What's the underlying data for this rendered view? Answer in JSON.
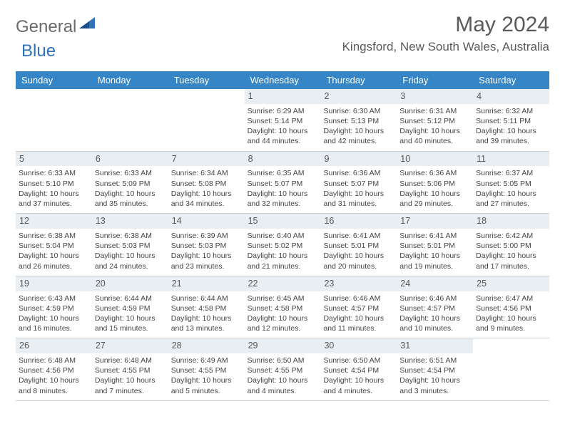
{
  "brand": {
    "name1": "General",
    "name2": "Blue"
  },
  "title": "May 2024",
  "location": "Kingsford, New South Wales, Australia",
  "colors": {
    "header_bg": "#3685c6",
    "header_text": "#ffffff",
    "daynum_bg": "#e9eef3",
    "brand_gray": "#6a6a6a",
    "brand_blue": "#2f72b8",
    "text": "#444444",
    "border": "#d0d0d0"
  },
  "dayNames": [
    "Sunday",
    "Monday",
    "Tuesday",
    "Wednesday",
    "Thursday",
    "Friday",
    "Saturday"
  ],
  "weeks": [
    [
      {
        "n": "",
        "sr": "",
        "ss": "",
        "dl": ""
      },
      {
        "n": "",
        "sr": "",
        "ss": "",
        "dl": ""
      },
      {
        "n": "",
        "sr": "",
        "ss": "",
        "dl": ""
      },
      {
        "n": "1",
        "sr": "Sunrise: 6:29 AM",
        "ss": "Sunset: 5:14 PM",
        "dl": "Daylight: 10 hours and 44 minutes."
      },
      {
        "n": "2",
        "sr": "Sunrise: 6:30 AM",
        "ss": "Sunset: 5:13 PM",
        "dl": "Daylight: 10 hours and 42 minutes."
      },
      {
        "n": "3",
        "sr": "Sunrise: 6:31 AM",
        "ss": "Sunset: 5:12 PM",
        "dl": "Daylight: 10 hours and 40 minutes."
      },
      {
        "n": "4",
        "sr": "Sunrise: 6:32 AM",
        "ss": "Sunset: 5:11 PM",
        "dl": "Daylight: 10 hours and 39 minutes."
      }
    ],
    [
      {
        "n": "5",
        "sr": "Sunrise: 6:33 AM",
        "ss": "Sunset: 5:10 PM",
        "dl": "Daylight: 10 hours and 37 minutes."
      },
      {
        "n": "6",
        "sr": "Sunrise: 6:33 AM",
        "ss": "Sunset: 5:09 PM",
        "dl": "Daylight: 10 hours and 35 minutes."
      },
      {
        "n": "7",
        "sr": "Sunrise: 6:34 AM",
        "ss": "Sunset: 5:08 PM",
        "dl": "Daylight: 10 hours and 34 minutes."
      },
      {
        "n": "8",
        "sr": "Sunrise: 6:35 AM",
        "ss": "Sunset: 5:07 PM",
        "dl": "Daylight: 10 hours and 32 minutes."
      },
      {
        "n": "9",
        "sr": "Sunrise: 6:36 AM",
        "ss": "Sunset: 5:07 PM",
        "dl": "Daylight: 10 hours and 31 minutes."
      },
      {
        "n": "10",
        "sr": "Sunrise: 6:36 AM",
        "ss": "Sunset: 5:06 PM",
        "dl": "Daylight: 10 hours and 29 minutes."
      },
      {
        "n": "11",
        "sr": "Sunrise: 6:37 AM",
        "ss": "Sunset: 5:05 PM",
        "dl": "Daylight: 10 hours and 27 minutes."
      }
    ],
    [
      {
        "n": "12",
        "sr": "Sunrise: 6:38 AM",
        "ss": "Sunset: 5:04 PM",
        "dl": "Daylight: 10 hours and 26 minutes."
      },
      {
        "n": "13",
        "sr": "Sunrise: 6:38 AM",
        "ss": "Sunset: 5:03 PM",
        "dl": "Daylight: 10 hours and 24 minutes."
      },
      {
        "n": "14",
        "sr": "Sunrise: 6:39 AM",
        "ss": "Sunset: 5:03 PM",
        "dl": "Daylight: 10 hours and 23 minutes."
      },
      {
        "n": "15",
        "sr": "Sunrise: 6:40 AM",
        "ss": "Sunset: 5:02 PM",
        "dl": "Daylight: 10 hours and 21 minutes."
      },
      {
        "n": "16",
        "sr": "Sunrise: 6:41 AM",
        "ss": "Sunset: 5:01 PM",
        "dl": "Daylight: 10 hours and 20 minutes."
      },
      {
        "n": "17",
        "sr": "Sunrise: 6:41 AM",
        "ss": "Sunset: 5:01 PM",
        "dl": "Daylight: 10 hours and 19 minutes."
      },
      {
        "n": "18",
        "sr": "Sunrise: 6:42 AM",
        "ss": "Sunset: 5:00 PM",
        "dl": "Daylight: 10 hours and 17 minutes."
      }
    ],
    [
      {
        "n": "19",
        "sr": "Sunrise: 6:43 AM",
        "ss": "Sunset: 4:59 PM",
        "dl": "Daylight: 10 hours and 16 minutes."
      },
      {
        "n": "20",
        "sr": "Sunrise: 6:44 AM",
        "ss": "Sunset: 4:59 PM",
        "dl": "Daylight: 10 hours and 15 minutes."
      },
      {
        "n": "21",
        "sr": "Sunrise: 6:44 AM",
        "ss": "Sunset: 4:58 PM",
        "dl": "Daylight: 10 hours and 13 minutes."
      },
      {
        "n": "22",
        "sr": "Sunrise: 6:45 AM",
        "ss": "Sunset: 4:58 PM",
        "dl": "Daylight: 10 hours and 12 minutes."
      },
      {
        "n": "23",
        "sr": "Sunrise: 6:46 AM",
        "ss": "Sunset: 4:57 PM",
        "dl": "Daylight: 10 hours and 11 minutes."
      },
      {
        "n": "24",
        "sr": "Sunrise: 6:46 AM",
        "ss": "Sunset: 4:57 PM",
        "dl": "Daylight: 10 hours and 10 minutes."
      },
      {
        "n": "25",
        "sr": "Sunrise: 6:47 AM",
        "ss": "Sunset: 4:56 PM",
        "dl": "Daylight: 10 hours and 9 minutes."
      }
    ],
    [
      {
        "n": "26",
        "sr": "Sunrise: 6:48 AM",
        "ss": "Sunset: 4:56 PM",
        "dl": "Daylight: 10 hours and 8 minutes."
      },
      {
        "n": "27",
        "sr": "Sunrise: 6:48 AM",
        "ss": "Sunset: 4:55 PM",
        "dl": "Daylight: 10 hours and 7 minutes."
      },
      {
        "n": "28",
        "sr": "Sunrise: 6:49 AM",
        "ss": "Sunset: 4:55 PM",
        "dl": "Daylight: 10 hours and 5 minutes."
      },
      {
        "n": "29",
        "sr": "Sunrise: 6:50 AM",
        "ss": "Sunset: 4:55 PM",
        "dl": "Daylight: 10 hours and 4 minutes."
      },
      {
        "n": "30",
        "sr": "Sunrise: 6:50 AM",
        "ss": "Sunset: 4:54 PM",
        "dl": "Daylight: 10 hours and 4 minutes."
      },
      {
        "n": "31",
        "sr": "Sunrise: 6:51 AM",
        "ss": "Sunset: 4:54 PM",
        "dl": "Daylight: 10 hours and 3 minutes."
      },
      {
        "n": "",
        "sr": "",
        "ss": "",
        "dl": ""
      }
    ]
  ]
}
